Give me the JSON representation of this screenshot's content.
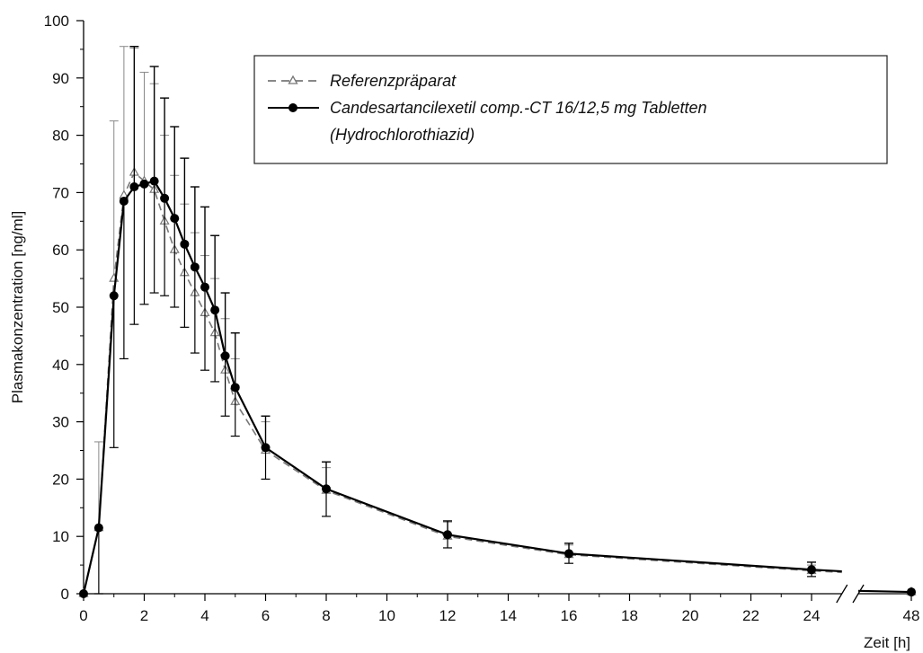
{
  "chart_data": {
    "type": "line",
    "title": "",
    "xlabel": "Zeit [h]",
    "ylabel": "Plasmakonzentration [ng/ml]",
    "xlim": [
      0,
      48
    ],
    "ylim": [
      0,
      100
    ],
    "x_axis_break": [
      25,
      47.2
    ],
    "x_ticks": [
      0,
      2,
      4,
      6,
      8,
      10,
      12,
      14,
      16,
      18,
      20,
      22,
      24,
      48
    ],
    "y_ticks": [
      0,
      10,
      20,
      30,
      40,
      50,
      60,
      70,
      80,
      90,
      100
    ],
    "grid": false,
    "legend_position": "top-right",
    "series": [
      {
        "name": "Referenzpräparat",
        "style": "dashed-open-triangle",
        "color": "#777777",
        "x": [
          0,
          0.5,
          1,
          1.33,
          1.67,
          2,
          2.33,
          2.67,
          3,
          3.33,
          3.67,
          4,
          4.33,
          4.67,
          5,
          6,
          8,
          12,
          16,
          24,
          48
        ],
        "y": [
          0,
          11.5,
          55,
          69.5,
          73.5,
          72,
          70.5,
          65,
          60,
          56,
          52.5,
          49,
          45.5,
          39,
          33.5,
          25,
          18,
          10,
          6.8,
          4,
          0.3
        ],
        "error_upper": [
          0,
          26.5,
          82.5,
          95.5,
          95.2,
          91,
          89,
          80,
          73,
          68,
          63,
          59,
          55,
          48,
          41,
          30,
          22,
          12.5,
          8.5,
          5,
          0.5
        ]
      },
      {
        "name": "Candesartancilexetil comp.-CT 16/12,5 mg Tabletten (Hydrochlorothiazid)",
        "style": "solid-filled-circle",
        "color": "#000000",
        "x": [
          0,
          0.5,
          1,
          1.33,
          1.67,
          2,
          2.33,
          2.67,
          3,
          3.33,
          3.67,
          4,
          4.33,
          4.67,
          5,
          6,
          8,
          12,
          16,
          24,
          48
        ],
        "y": [
          0,
          11.5,
          52,
          68.5,
          71,
          71.5,
          72,
          69,
          65.5,
          61,
          57,
          53.5,
          49.5,
          41.5,
          36,
          25.5,
          18.3,
          10.3,
          7,
          4.2,
          0.3
        ],
        "error_lower": [
          0,
          0,
          25.5,
          41,
          47,
          50.5,
          52.5,
          52,
          50,
          46.5,
          42,
          39,
          37,
          31,
          27.5,
          20,
          13.5,
          8,
          5.3,
          3,
          0
        ]
      },
      {
        "name": "",
        "style": "error-bars",
        "color": "#000000",
        "x": [
          1.33,
          1.67,
          2,
          2.33,
          2.67,
          3,
          3.33,
          3.67,
          4,
          4.33,
          4.67,
          5,
          6,
          8,
          12,
          16,
          24
        ],
        "error_upper": [
          0,
          95.5,
          0,
          92,
          86.5,
          81.5,
          76,
          71,
          67.5,
          62.5,
          52.5,
          45.5,
          31,
          23,
          12.7,
          8.8,
          5.5
        ]
      }
    ],
    "legend": {
      "entries": [
        {
          "label": "Referenzpräparat"
        },
        {
          "label": "Candesartancilexetil comp.-CT 16/12,5 mg Tabletten",
          "label_line2": "(Hydrochlorothiazid)"
        }
      ]
    }
  }
}
